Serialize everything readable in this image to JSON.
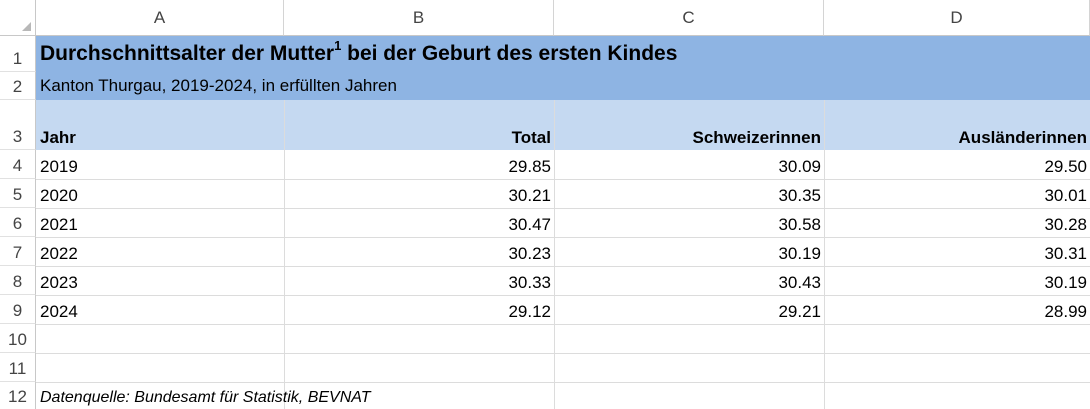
{
  "columns": [
    "A",
    "B",
    "C",
    "D"
  ],
  "rows": [
    "1",
    "2",
    "3",
    "4",
    "5",
    "6",
    "7",
    "8",
    "9",
    "10",
    "11",
    "12"
  ],
  "sheet": {
    "title_main": "Durchschnittsalter der Mutter",
    "title_sup": "1",
    "title_rest": " bei der Geburt des ersten Kindes",
    "subtitle": "Kanton Thurgau, 2019-2024, in erfüllten Jahren",
    "headers": [
      "Jahr",
      "Total",
      "Schweizerinnen",
      "Ausländerinnen"
    ],
    "data": [
      [
        "2019",
        "29.85",
        "30.09",
        "29.50"
      ],
      [
        "2020",
        "30.21",
        "30.35",
        "30.01"
      ],
      [
        "2021",
        "30.47",
        "30.58",
        "30.28"
      ],
      [
        "2022",
        "30.23",
        "30.19",
        "30.31"
      ],
      [
        "2023",
        "30.33",
        "30.43",
        "30.19"
      ],
      [
        "2024",
        "29.12",
        "29.21",
        "28.99"
      ]
    ],
    "source": "Datenquelle: Bundesamt für Statistik, BEVNAT"
  },
  "colors": {
    "title_band": "#8eb4e3",
    "header_band": "#c5d9f1"
  }
}
